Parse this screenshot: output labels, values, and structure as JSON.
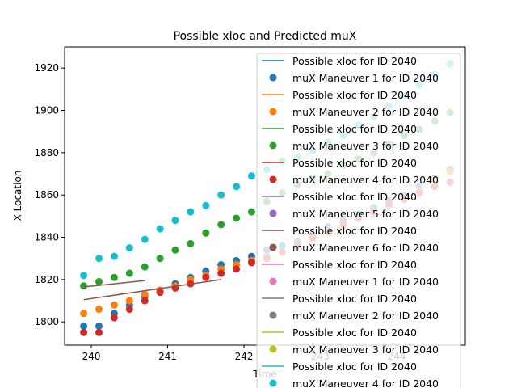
{
  "chart_data": {
    "type": "scatter",
    "title": "Possible xloc and Predicted muX",
    "xlabel": "Time",
    "ylabel": "X Location",
    "xlim": [
      239.65,
      244.9
    ],
    "ylim": [
      1789,
      1930
    ],
    "xticks": [
      240,
      241,
      242,
      243,
      244
    ],
    "yticks": [
      1800,
      1820,
      1840,
      1860,
      1880,
      1900,
      1920
    ],
    "legend_position": "upper-right",
    "legend": [
      {
        "label": "Possible xloc for ID 2040",
        "kind": "line",
        "color": "#1f77b4"
      },
      {
        "label": "muX Maneuver 1 for ID 2040",
        "kind": "marker",
        "color": "#1f77b4"
      },
      {
        "label": "Possible xloc for ID 2040",
        "kind": "line",
        "color": "#ff7f0e"
      },
      {
        "label": "muX Maneuver 2 for ID 2040",
        "kind": "marker",
        "color": "#ff7f0e"
      },
      {
        "label": "Possible xloc for ID 2040",
        "kind": "line",
        "color": "#2ca02c"
      },
      {
        "label": "muX Maneuver 3 for ID 2040",
        "kind": "marker",
        "color": "#2ca02c"
      },
      {
        "label": "Possible xloc for ID 2040",
        "kind": "line",
        "color": "#d62728"
      },
      {
        "label": "muX Maneuver 4 for ID 2040",
        "kind": "marker",
        "color": "#d62728"
      },
      {
        "label": "Possible xloc for ID 2040",
        "kind": "line",
        "color": "#9467bd"
      },
      {
        "label": "muX Maneuver 5 for ID 2040",
        "kind": "marker",
        "color": "#9467bd"
      },
      {
        "label": "Possible xloc for ID 2040",
        "kind": "line",
        "color": "#8c564b"
      },
      {
        "label": "muX Maneuver 6 for ID 2040",
        "kind": "marker",
        "color": "#8c564b"
      },
      {
        "label": "Possible xloc for ID 2040",
        "kind": "line",
        "color": "#e377c2"
      },
      {
        "label": "muX Maneuver 1 for ID 2040",
        "kind": "marker",
        "color": "#e377c2"
      },
      {
        "label": "Possible xloc for ID 2040",
        "kind": "line",
        "color": "#7f7f7f"
      },
      {
        "label": "muX Maneuver 2 for ID 2040",
        "kind": "marker",
        "color": "#7f7f7f"
      },
      {
        "label": "Possible xloc for ID 2040",
        "kind": "line",
        "color": "#bcbd22"
      },
      {
        "label": "muX Maneuver 3 for ID 2040",
        "kind": "marker",
        "color": "#bcbd22"
      },
      {
        "label": "Possible xloc for ID 2040",
        "kind": "line",
        "color": "#17becf"
      },
      {
        "label": "muX Maneuver 4 for ID 2040",
        "kind": "marker",
        "color": "#17becf"
      }
    ],
    "lines": [
      {
        "color": "#8c564b",
        "x": [
          239.9,
          240.7
        ],
        "y": [
          1816.5,
          1819.5
        ]
      },
      {
        "color": "#8c564b",
        "x": [
          239.9,
          241.7
        ],
        "y": [
          1810.5,
          1820.0
        ]
      }
    ],
    "series": [
      {
        "color": "#1f77b4",
        "x": [
          239.9,
          240.1,
          240.3,
          240.5,
          240.7,
          240.9,
          241.1,
          241.3,
          241.5,
          241.7,
          241.9,
          242.1,
          242.3,
          242.5,
          242.7,
          242.9,
          243.1,
          243.3,
          243.5,
          243.7,
          243.9,
          244.1,
          244.3,
          244.5,
          244.7
        ],
        "y": [
          1798,
          1798,
          1804,
          1808,
          1812,
          1815,
          1818,
          1821,
          1824,
          1827,
          1829,
          1831,
          1834,
          1836,
          1838,
          1841,
          1845,
          1848,
          1851,
          1854,
          1857,
          1860,
          1864,
          1868,
          1872
        ]
      },
      {
        "color": "#ff7f0e",
        "x": [
          239.9,
          240.1,
          240.3,
          240.5,
          240.7,
          240.9,
          241.1,
          241.3,
          241.5,
          241.7,
          241.9,
          242.1,
          242.3,
          242.5,
          242.7,
          242.9,
          243.1,
          243.3,
          243.5,
          243.7,
          243.9,
          244.1,
          244.3,
          244.5,
          244.7
        ],
        "y": [
          1804,
          1806,
          1808,
          1810,
          1813,
          1815,
          1817,
          1820,
          1822,
          1825,
          1827,
          1829,
          1831,
          1833,
          1836,
          1839,
          1842,
          1845,
          1849,
          1852,
          1855,
          1858,
          1862,
          1866,
          1871
        ]
      },
      {
        "color": "#2ca02c",
        "x": [
          239.9,
          240.1,
          240.3,
          240.5,
          240.7,
          240.9,
          241.1,
          241.3,
          241.5,
          241.7,
          241.9,
          242.1,
          242.3,
          242.5,
          242.7,
          242.9,
          243.1,
          243.3,
          243.5,
          243.7,
          243.9,
          244.1,
          244.3,
          244.5,
          244.7
        ],
        "y": [
          1817,
          1819,
          1821,
          1823,
          1826,
          1830,
          1834,
          1837,
          1842,
          1846,
          1849,
          1852,
          1857,
          1861,
          1865,
          1868,
          1870,
          1874,
          1877,
          1880,
          1884,
          1888,
          1891,
          1895,
          1899
        ]
      },
      {
        "color": "#d62728",
        "x": [
          239.9,
          240.1,
          240.3,
          240.5,
          240.7,
          240.9,
          241.1,
          241.3,
          241.5,
          241.7,
          241.9,
          242.1,
          242.3,
          242.5,
          242.7,
          242.9,
          243.1,
          243.3,
          243.5,
          243.7,
          243.9,
          244.1,
          244.3,
          244.5,
          244.7
        ],
        "y": [
          1795,
          1795,
          1802,
          1806,
          1810,
          1814,
          1816,
          1818,
          1821,
          1823,
          1825,
          1828,
          1830,
          1833,
          1836,
          1840,
          1843,
          1846,
          1849,
          1852,
          1856,
          1858,
          1861,
          1864,
          1866
        ]
      },
      {
        "color": "#17becf",
        "x": [
          239.9,
          240.1,
          240.3,
          240.5,
          240.7,
          240.9,
          241.1,
          241.3,
          241.5,
          241.7,
          241.9,
          242.1,
          242.3,
          242.5,
          242.7,
          242.9,
          243.1,
          243.3,
          243.5,
          243.7,
          243.9,
          244.1,
          244.3,
          244.5,
          244.7
        ],
        "y": [
          1822,
          1830,
          1831,
          1835,
          1839,
          1844,
          1848,
          1852,
          1855,
          1860,
          1864,
          1869,
          1872,
          1876,
          1878,
          1881,
          1885,
          1888,
          1893,
          1897,
          1902,
          1907,
          1912,
          1917,
          1922
        ]
      }
    ]
  }
}
